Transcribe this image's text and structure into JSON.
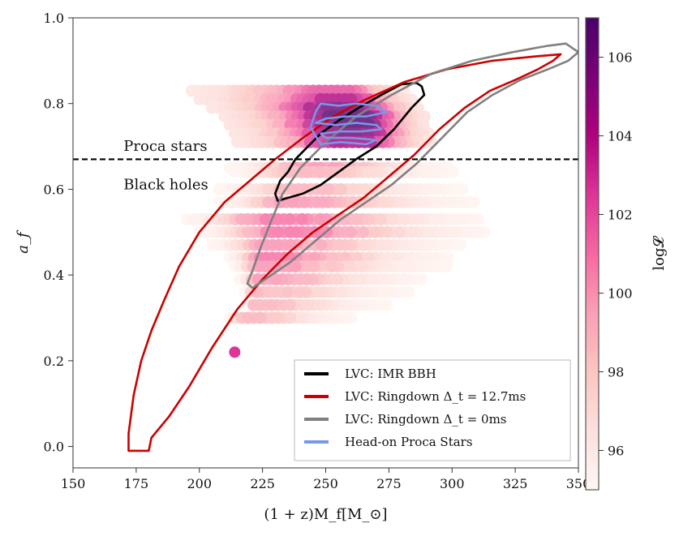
{
  "chart_data": {
    "type": "scatter",
    "title": "",
    "xlabel": "(1 + z)M_f[M_⊙]",
    "ylabel": "a_f",
    "xlim": [
      150,
      350
    ],
    "ylim": [
      -0.05,
      1.0
    ],
    "xticks": [
      150,
      175,
      200,
      225,
      250,
      275,
      300,
      325,
      350
    ],
    "yticks": [
      0.0,
      0.2,
      0.4,
      0.6,
      0.8,
      1.0
    ],
    "xtick_labels": [
      "150",
      "175",
      "200",
      "225",
      "250",
      "275",
      "300",
      "325",
      "350"
    ],
    "ytick_labels": [
      "0.0",
      "0.2",
      "0.4",
      "0.6",
      "0.8",
      "1.0"
    ],
    "colorbar": {
      "label": "log𝓛",
      "range": [
        95,
        107
      ],
      "ticks": [
        96,
        98,
        100,
        102,
        104,
        106
      ],
      "tick_labels": [
        "96",
        "98",
        "100",
        "102",
        "104",
        "106"
      ],
      "colors": [
        "#fff7f3",
        "#fde0dd",
        "#fcc5c0",
        "#fa9fb5",
        "#f768a1",
        "#dd3497",
        "#ae017e",
        "#7a0177",
        "#49006a"
      ]
    },
    "threshold_line": {
      "y": 0.67,
      "style": "dashed"
    },
    "annotations": [
      {
        "text": "Proca stars",
        "x": 170,
        "y": 0.69
      },
      {
        "text": "Black holes",
        "x": 170,
        "y": 0.6
      }
    ],
    "legend_position": "lower-right",
    "scatter_rows": [
      {
        "y": 0.83,
        "xmin": 197,
        "xmax": 282,
        "peak": 256,
        "lmin": 96,
        "lmax": 102
      },
      {
        "y": 0.81,
        "xmin": 200,
        "xmax": 285,
        "peak": 258,
        "lmin": 96,
        "lmax": 104
      },
      {
        "y": 0.79,
        "xmin": 205,
        "xmax": 288,
        "peak": 260,
        "lmin": 96,
        "lmax": 106
      },
      {
        "y": 0.77,
        "xmin": 210,
        "xmax": 290,
        "peak": 261,
        "lmin": 96,
        "lmax": 107
      },
      {
        "y": 0.75,
        "xmin": 212,
        "xmax": 290,
        "peak": 262,
        "lmin": 96,
        "lmax": 107
      },
      {
        "y": 0.73,
        "xmin": 214,
        "xmax": 292,
        "peak": 262,
        "lmin": 96,
        "lmax": 106
      },
      {
        "y": 0.71,
        "xmin": 215,
        "xmax": 292,
        "peak": 262,
        "lmin": 96,
        "lmax": 105
      },
      {
        "y": 0.65,
        "xmin": 212,
        "xmax": 300,
        "peak": 245,
        "lmin": 95,
        "lmax": 100
      },
      {
        "y": 0.64,
        "xmin": 214,
        "xmax": 302,
        "peak": 240,
        "lmin": 95,
        "lmax": 99
      },
      {
        "y": 0.6,
        "xmin": 208,
        "xmax": 305,
        "peak": 238,
        "lmin": 95,
        "lmax": 99
      },
      {
        "y": 0.57,
        "xmin": 208,
        "xmax": 310,
        "peak": 235,
        "lmin": 95,
        "lmax": 100
      },
      {
        "y": 0.53,
        "xmin": 195,
        "xmax": 312,
        "peak": 228,
        "lmin": 95,
        "lmax": 101
      },
      {
        "y": 0.5,
        "xmin": 200,
        "xmax": 315,
        "peak": 232,
        "lmin": 95,
        "lmax": 101
      },
      {
        "y": 0.47,
        "xmin": 205,
        "xmax": 305,
        "peak": 228,
        "lmin": 95,
        "lmax": 100
      },
      {
        "y": 0.44,
        "xmin": 212,
        "xmax": 300,
        "peak": 226,
        "lmin": 95,
        "lmax": 101
      },
      {
        "y": 0.42,
        "xmin": 214,
        "xmax": 298,
        "peak": 224,
        "lmin": 95,
        "lmax": 100
      },
      {
        "y": 0.39,
        "xmin": 216,
        "xmax": 290,
        "peak": 223,
        "lmin": 95,
        "lmax": 100
      },
      {
        "y": 0.36,
        "xmin": 218,
        "xmax": 285,
        "peak": 222,
        "lmin": 95,
        "lmax": 99
      },
      {
        "y": 0.33,
        "xmin": 219,
        "xmax": 275,
        "peak": 221,
        "lmin": 95,
        "lmax": 99
      },
      {
        "y": 0.3,
        "xmin": 212,
        "xmax": 262,
        "peak": 216,
        "lmin": 95,
        "lmax": 99
      }
    ],
    "isolated_point": {
      "x": 214,
      "y": 0.22,
      "logL": 102.5
    },
    "series": [
      {
        "name": "LVC: IMR BBH",
        "color": "#000000",
        "points": [
          [
            288,
            0.84
          ],
          [
            289,
            0.82
          ],
          [
            284,
            0.79
          ],
          [
            277,
            0.74
          ],
          [
            270,
            0.7
          ],
          [
            262,
            0.67
          ],
          [
            255,
            0.64
          ],
          [
            248,
            0.61
          ],
          [
            241,
            0.59
          ],
          [
            235,
            0.58
          ],
          [
            231,
            0.573
          ],
          [
            230,
            0.59
          ],
          [
            232,
            0.62
          ],
          [
            235,
            0.64
          ],
          [
            238,
            0.67
          ],
          [
            243,
            0.7
          ],
          [
            248,
            0.73
          ],
          [
            255,
            0.76
          ],
          [
            263,
            0.79
          ],
          [
            272,
            0.82
          ],
          [
            280,
            0.845
          ],
          [
            286,
            0.848
          ],
          [
            288,
            0.84
          ]
        ]
      },
      {
        "name": "LVC: Ringdown Δ_t = 12.7ms",
        "color": "#cc0000",
        "points": [
          [
            343,
            0.915
          ],
          [
            340,
            0.9
          ],
          [
            334,
            0.88
          ],
          [
            325,
            0.855
          ],
          [
            315,
            0.83
          ],
          [
            305,
            0.79
          ],
          [
            295,
            0.74
          ],
          [
            285,
            0.68
          ],
          [
            275,
            0.63
          ],
          [
            265,
            0.58
          ],
          [
            255,
            0.54
          ],
          [
            245,
            0.5
          ],
          [
            235,
            0.45
          ],
          [
            225,
            0.39
          ],
          [
            215,
            0.32
          ],
          [
            205,
            0.23
          ],
          [
            196,
            0.14
          ],
          [
            188,
            0.07
          ],
          [
            181,
            0.02
          ],
          [
            180,
            -0.01
          ],
          [
            172,
            -0.01
          ],
          [
            172,
            0.03
          ],
          [
            174,
            0.12
          ],
          [
            177,
            0.2
          ],
          [
            181,
            0.27
          ],
          [
            186,
            0.34
          ],
          [
            192,
            0.42
          ],
          [
            200,
            0.5
          ],
          [
            210,
            0.57
          ],
          [
            220,
            0.62
          ],
          [
            230,
            0.67
          ],
          [
            241,
            0.72
          ],
          [
            253,
            0.77
          ],
          [
            266,
            0.81
          ],
          [
            281,
            0.85
          ],
          [
            298,
            0.88
          ],
          [
            316,
            0.9
          ],
          [
            333,
            0.91
          ],
          [
            343,
            0.915
          ]
        ]
      },
      {
        "name": "LVC: Ringdown Δ_t = 0ms",
        "color": "#808080",
        "points": [
          [
            345,
            0.94
          ],
          [
            350,
            0.92
          ],
          [
            346,
            0.9
          ],
          [
            338,
            0.88
          ],
          [
            327,
            0.855
          ],
          [
            316,
            0.82
          ],
          [
            306,
            0.78
          ],
          [
            296,
            0.72
          ],
          [
            286,
            0.66
          ],
          [
            276,
            0.61
          ],
          [
            266,
            0.57
          ],
          [
            256,
            0.53
          ],
          [
            246,
            0.48
          ],
          [
            236,
            0.43
          ],
          [
            226,
            0.39
          ],
          [
            221,
            0.37
          ],
          [
            219,
            0.38
          ],
          [
            221,
            0.41
          ],
          [
            224,
            0.46
          ],
          [
            228,
            0.52
          ],
          [
            233,
            0.59
          ],
          [
            240,
            0.65
          ],
          [
            250,
            0.71
          ],
          [
            262,
            0.77
          ],
          [
            276,
            0.82
          ],
          [
            292,
            0.87
          ],
          [
            308,
            0.9
          ],
          [
            324,
            0.92
          ],
          [
            338,
            0.935
          ],
          [
            345,
            0.94
          ]
        ]
      },
      {
        "name": "Head-on Proca Stars",
        "color": "#7799e8",
        "points": [
          [
            248,
            0.8
          ],
          [
            255,
            0.795
          ],
          [
            262,
            0.8
          ],
          [
            270,
            0.795
          ],
          [
            274,
            0.78
          ],
          [
            266,
            0.77
          ],
          [
            258,
            0.77
          ],
          [
            250,
            0.765
          ],
          [
            246,
            0.755
          ],
          [
            254,
            0.75
          ],
          [
            262,
            0.755
          ],
          [
            270,
            0.75
          ],
          [
            272,
            0.74
          ],
          [
            264,
            0.735
          ],
          [
            256,
            0.735
          ],
          [
            248,
            0.73
          ],
          [
            250,
            0.72
          ],
          [
            260,
            0.72
          ],
          [
            270,
            0.715
          ],
          [
            266,
            0.705
          ],
          [
            256,
            0.71
          ],
          [
            248,
            0.705
          ],
          [
            246,
            0.725
          ],
          [
            244,
            0.745
          ],
          [
            246,
            0.78
          ],
          [
            248,
            0.8
          ]
        ]
      }
    ],
    "legend": [
      {
        "label": "LVC: IMR BBH",
        "color": "#000000"
      },
      {
        "label": "LVC: Ringdown Δ_t = 12.7ms",
        "color": "#cc0000"
      },
      {
        "label": "LVC: Ringdown Δ_t = 0ms",
        "color": "#808080"
      },
      {
        "label": "Head-on Proca Stars",
        "color": "#7799e8"
      }
    ]
  }
}
